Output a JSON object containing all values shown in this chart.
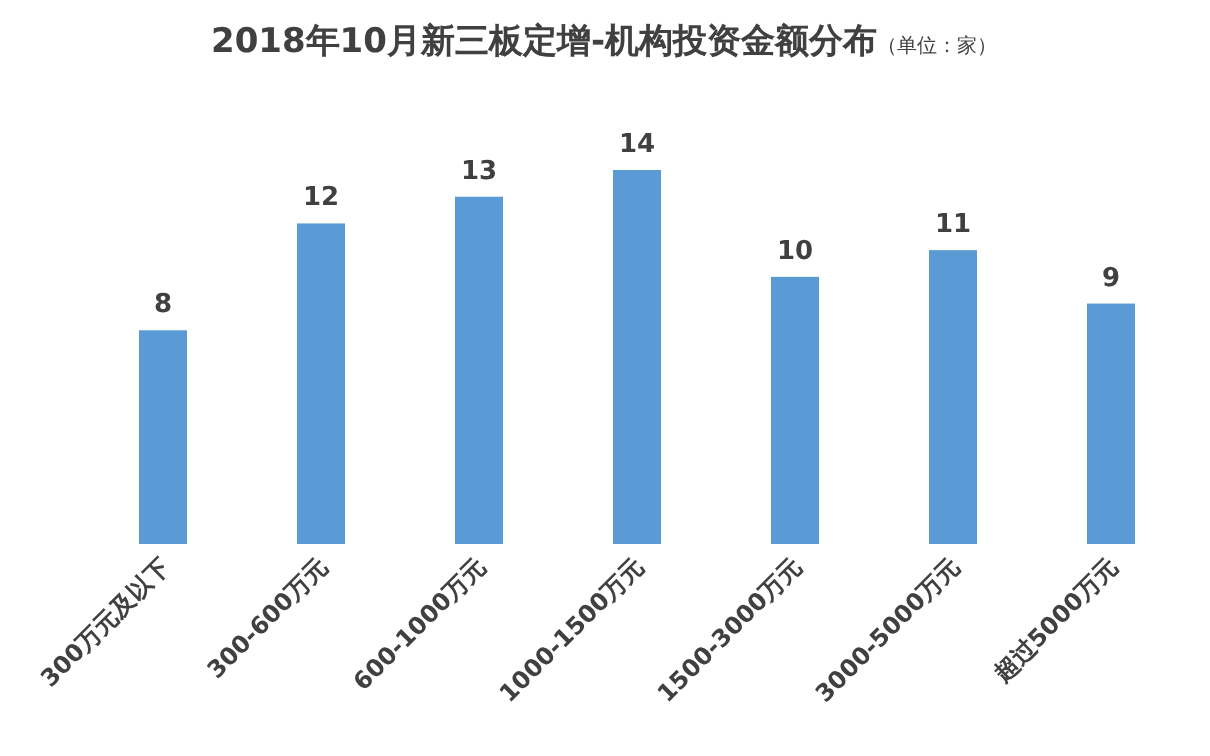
{
  "chart_data": {
    "type": "bar",
    "title": "2018年10月新三板定增-机构投资金额分布",
    "subtitle": "（单位：家）",
    "categories": [
      "300万元及以下",
      "300-600万元",
      "600-1000万元",
      "1000-1500万元",
      "1500-3000万元",
      "3000-5000万元",
      "超过5000万元"
    ],
    "values": [
      8,
      12,
      13,
      14,
      10,
      11,
      9
    ],
    "color": "#5b9bd5",
    "data_labels": true
  }
}
